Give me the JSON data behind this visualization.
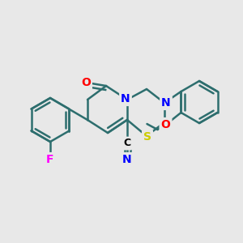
{
  "bg_color": "#e8e8e8",
  "bond_color": "#2d6e6e",
  "bond_width": 1.8,
  "atom_colors": {
    "N": "#0000ff",
    "S": "#cccc00",
    "O": "#ff0000",
    "F": "#ff00ff",
    "C_label": "#000000"
  },
  "fig_size": [
    3.0,
    3.0
  ],
  "dpi": 100
}
